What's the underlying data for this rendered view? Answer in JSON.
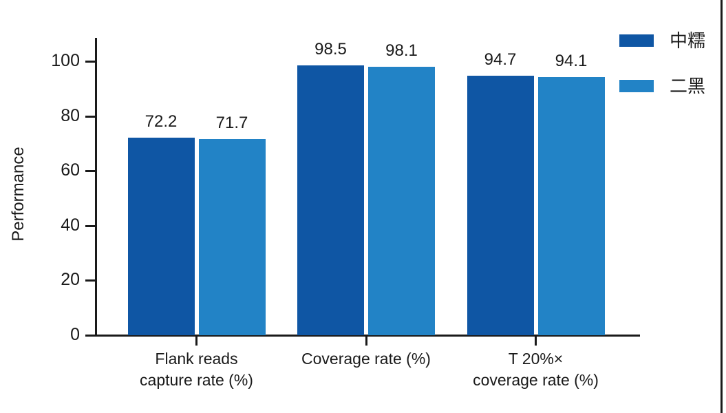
{
  "figure": {
    "background": "#ffffff",
    "right_border_color": "#1a1a1a",
    "axis_color": "#1a1a1a",
    "text_color": "#1a1a1a"
  },
  "chart_data": {
    "type": "bar",
    "title": "",
    "xlabel": "",
    "ylabel": "Performance",
    "categories": [
      "Flank reads\ncapture rate (%)",
      "Coverage rate (%)",
      "T 20%×\ncoverage rate (%)"
    ],
    "series": [
      {
        "name": "中糯",
        "color": "#0f56a4",
        "values": [
          72.2,
          98.5,
          94.7
        ]
      },
      {
        "name": "二黑",
        "color": "#2283c6",
        "values": [
          71.7,
          98.1,
          94.1
        ]
      }
    ],
    "yticks": [
      0,
      20,
      40,
      60,
      80,
      100
    ],
    "ylim": [
      0,
      110
    ],
    "grid": false,
    "value_labels": true,
    "value_label_decimals": 1,
    "legend_position": "top-right"
  }
}
